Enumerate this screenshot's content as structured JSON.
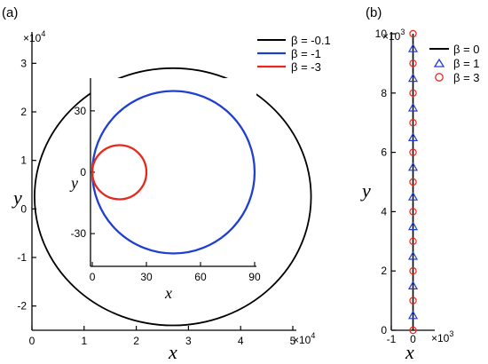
{
  "chart_data": [
    {
      "panel_label": "(a)",
      "type": "line",
      "xlabel": "x",
      "ylabel": "y",
      "x_ticks": [
        "0",
        "1",
        "2",
        "3",
        "4",
        "5"
      ],
      "y_ticks": [
        "-2",
        "-1",
        "0",
        "1",
        "2",
        "3"
      ],
      "x_multiplier": "×10",
      "x_exponent": "4",
      "y_multiplier": "×10",
      "y_exponent": "4",
      "xlim": [
        0,
        50000
      ],
      "ylim": [
        -25000,
        35000
      ],
      "legend_placement": "top-right",
      "series": [
        {
          "name": "β = -0.1",
          "color": "#000000",
          "shape": "circle",
          "center": [
            27000,
            2500
          ],
          "radius": 26500
        },
        {
          "name": "β = -1",
          "color": "#1f3fd0",
          "shape": "circle",
          "center": [
            45,
            0
          ],
          "radius": 45
        },
        {
          "name": "β = -3",
          "color": "#e8281c",
          "shape": "circle",
          "center": [
            15,
            0
          ],
          "radius": 15
        }
      ],
      "inset": {
        "xlabel": "x",
        "ylabel": "y",
        "x_ticks": [
          "0",
          "30",
          "60",
          "90"
        ],
        "y_ticks": [
          "-30",
          "0",
          "30"
        ],
        "xlim": [
          -1,
          91
        ],
        "ylim": [
          -46,
          46
        ]
      }
    },
    {
      "panel_label": "(b)",
      "type": "line",
      "xlabel": "x",
      "ylabel": "y",
      "x_ticks": [
        "-1",
        "0"
      ],
      "y_ticks": [
        "0",
        "2",
        "4",
        "6",
        "8",
        "10"
      ],
      "x_multiplier": "×10",
      "x_exponent": "3",
      "y_multiplier": "×10",
      "y_exponent": "3",
      "xlim": [
        -1000,
        1000
      ],
      "ylim": [
        0,
        10000
      ],
      "legend_placement": "top-right",
      "series": [
        {
          "name": "β = 0",
          "color": "#000000",
          "marker": "line",
          "x": 0,
          "y_range": [
            0,
            10000
          ]
        },
        {
          "name": "β = 1",
          "color": "#1f3fd0",
          "marker": "triangle",
          "x": 0,
          "y": [
            500,
            1500,
            2500,
            3500,
            4500,
            5500,
            6500,
            7500,
            8500,
            9500
          ]
        },
        {
          "name": "β = 3",
          "color": "#e8281c",
          "marker": "circle",
          "x": 0,
          "y": [
            0,
            1000,
            2000,
            3000,
            4000,
            5000,
            6000,
            7000,
            8000,
            9000,
            10000
          ]
        }
      ]
    }
  ]
}
